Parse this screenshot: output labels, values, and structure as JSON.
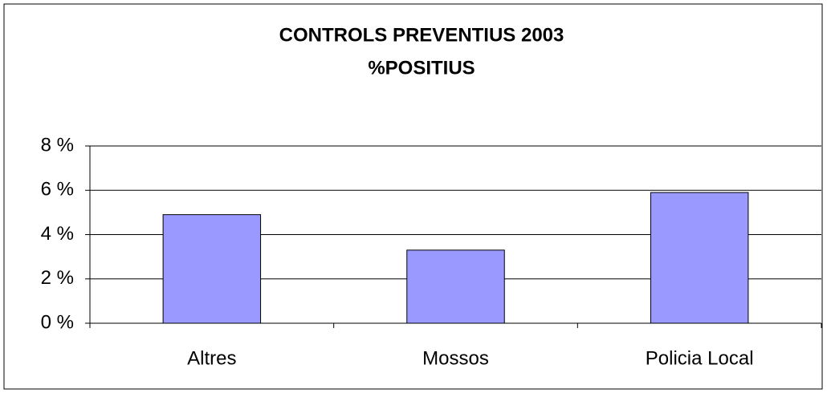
{
  "chart_data": {
    "type": "bar",
    "title": "CONTROLS PREVENTIUS  2003",
    "subtitle": "%POSITIUS",
    "categories": [
      "Altres",
      "Mossos",
      "Policia Local"
    ],
    "values": [
      4.9,
      3.3,
      5.9
    ],
    "color": "#9999ff",
    "ylim": [
      0,
      8
    ],
    "yticks": [
      {
        "value": 0,
        "label": "0 %"
      },
      {
        "value": 2,
        "label": "2 %"
      },
      {
        "value": 4,
        "label": "4 %"
      },
      {
        "value": 6,
        "label": "6 %"
      },
      {
        "value": 8,
        "label": "8 %"
      }
    ],
    "grid": true
  }
}
